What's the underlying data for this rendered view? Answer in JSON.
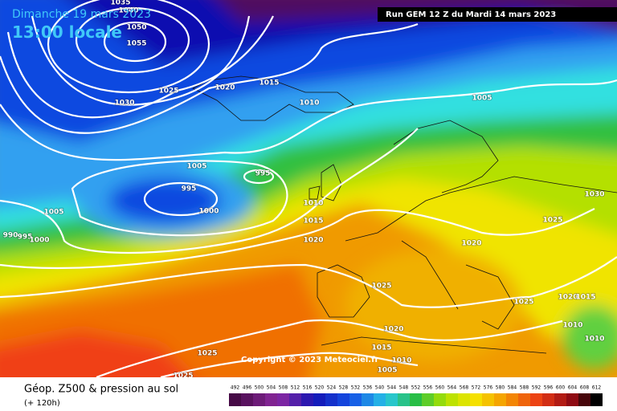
{
  "header": {
    "date": "Dimanche 19 mars 2023",
    "time": "13:00 locale",
    "run": "Run GEM 12 Z du Mardi 14 mars 2023"
  },
  "map": {
    "isobar_labels": [
      "1035",
      "1040",
      "1050",
      "1055",
      "1030",
      "1025",
      "1020",
      "1015",
      "1010",
      "1005",
      "1005",
      "995",
      "995",
      "1000",
      "1005",
      "1010",
      "1015",
      "1020",
      "990",
      "995",
      "1000",
      "1030",
      "1025",
      "1020",
      "1025",
      "1025",
      "1020",
      "1015",
      "1010",
      "1010",
      "1020",
      "1015",
      "1010",
      "1005",
      "1025",
      "1025"
    ],
    "copyright": "Copyright © 2023 Meteociel.fr"
  },
  "legend": {
    "title": "Géop. Z500 & pression au sol",
    "lead_time": "(+ 120h)",
    "scale": [
      492,
      496,
      500,
      504,
      508,
      512,
      516,
      520,
      524,
      528,
      532,
      536,
      540,
      544,
      548,
      552,
      556,
      560,
      564,
      568,
      572,
      576,
      580,
      584,
      588,
      592,
      596,
      600,
      604,
      608,
      612
    ]
  }
}
